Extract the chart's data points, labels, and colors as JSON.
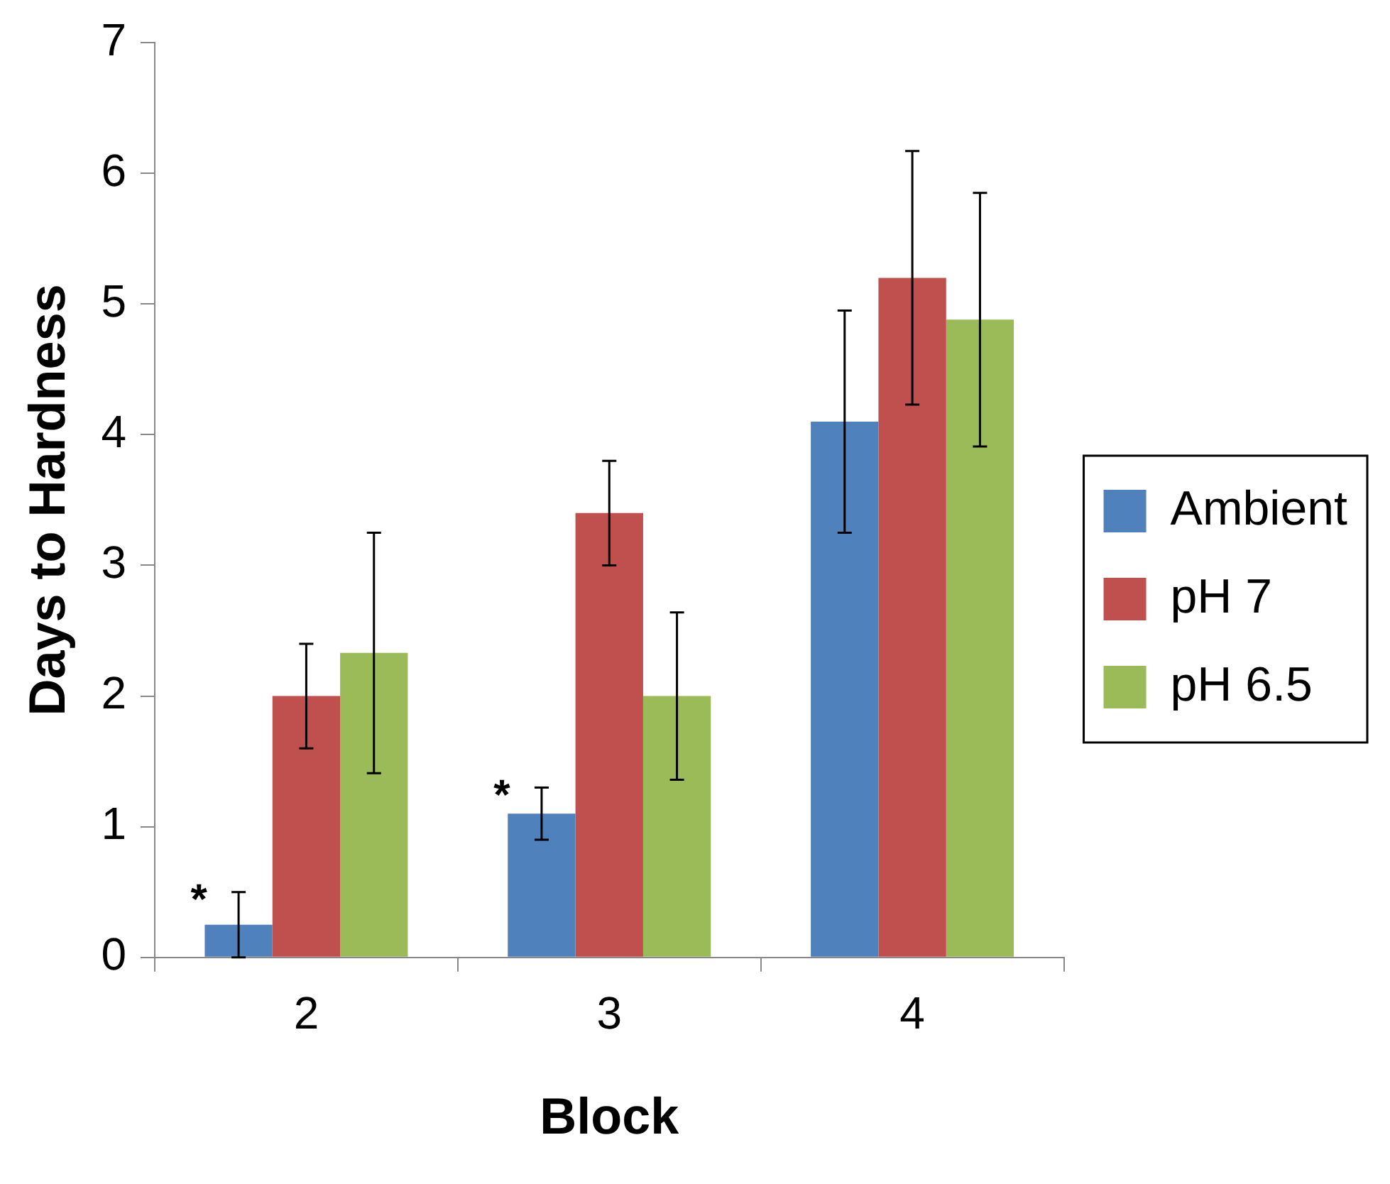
{
  "chart_data": {
    "type": "bar",
    "xlabel": "Block",
    "ylabel": "Days to Hardness",
    "categories": [
      "2",
      "3",
      "4"
    ],
    "series": [
      {
        "name": "Ambient",
        "color": "#4f81bd",
        "values": [
          0.25,
          1.1,
          4.1
        ],
        "errors": [
          0.25,
          0.2,
          0.85
        ]
      },
      {
        "name": "pH 7",
        "color": "#c0504d",
        "values": [
          2.0,
          3.4,
          5.2
        ],
        "errors": [
          0.4,
          0.4,
          0.97
        ]
      },
      {
        "name": "pH 6.5",
        "color": "#9bbb59",
        "values": [
          2.33,
          2.0,
          4.88
        ],
        "errors": [
          0.92,
          0.64,
          0.97
        ]
      }
    ],
    "ylim": [
      0,
      7
    ],
    "yticks": [
      0,
      1,
      2,
      3,
      4,
      5,
      6,
      7
    ],
    "grid": false,
    "legend": "right",
    "annotations": [
      "*",
      "*"
    ]
  }
}
